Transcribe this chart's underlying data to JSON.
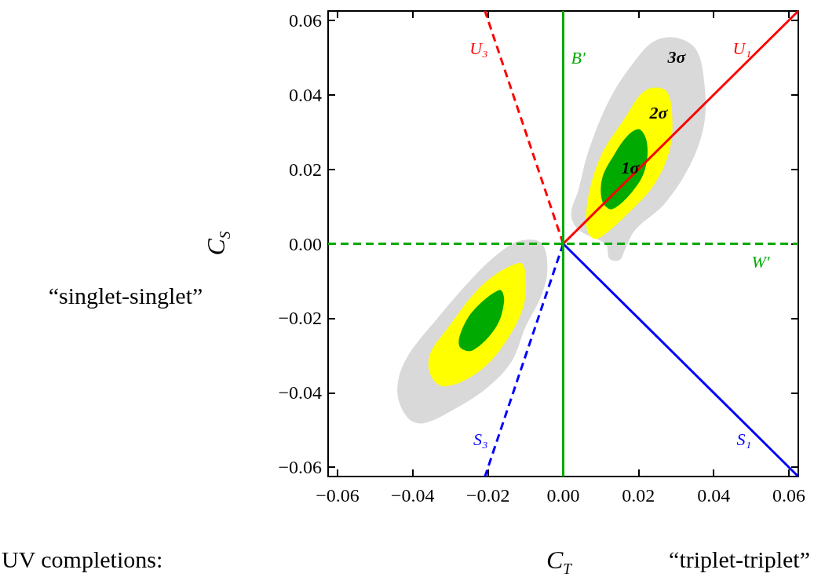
{
  "chart_data": {
    "type": "line",
    "xlabel": "C$_{T}$",
    "ylabel": "C$_{S}$",
    "xlim": [
      -0.0625,
      0.0625
    ],
    "ylim": [
      -0.0625,
      0.0625
    ],
    "xticks": [
      {
        "value": -0.06,
        "label": "−0.06"
      },
      {
        "value": -0.04,
        "label": "−0.04"
      },
      {
        "value": -0.02,
        "label": "−0.02"
      },
      {
        "value": 0,
        "label": "0.00"
      },
      {
        "value": 0.02,
        "label": "0.02"
      },
      {
        "value": 0.04,
        "label": "0.04"
      },
      {
        "value": 0.06,
        "label": "0.06"
      }
    ],
    "yticks": [
      {
        "value": -0.06,
        "label": "−0.06"
      },
      {
        "value": -0.04,
        "label": "−0.04"
      },
      {
        "value": -0.02,
        "label": "−0.02"
      },
      {
        "value": 0,
        "label": "0.00"
      },
      {
        "value": 0.02,
        "label": "0.02"
      },
      {
        "value": 0.04,
        "label": "0.04"
      },
      {
        "value": 0.06,
        "label": "0.06"
      }
    ],
    "grid": false,
    "legend": false,
    "series": [
      {
        "type": "area",
        "color": "#d9d9d9",
        "x": [
          0.0297,
          0.0353,
          0.0376,
          0.0374,
          0.0338,
          0.0269,
          0.0192,
          0.0165,
          0.015,
          0.0123,
          0.0113,
          0.004,
          0.0021,
          0.004,
          0.0067,
          0.0123,
          0.0192,
          0.024
        ],
        "values": [
          0.0554,
          0.0522,
          0.0423,
          0.0318,
          0.0213,
          0.0107,
          0.0038,
          -0.0013,
          -0.0044,
          -0.004,
          -0.0002,
          0.0038,
          0.008,
          0.0143,
          0.0248,
          0.0387,
          0.0493,
          0.0543
        ]
      },
      {
        "type": "area",
        "color": "#ffff00",
        "x": [
          0.024,
          0.0276,
          0.029,
          0.0282,
          0.024,
          0.0171,
          0.0115,
          0.0084,
          0.0063,
          0.0067,
          0.0102,
          0.0165,
          0.0207
        ],
        "values": [
          0.0419,
          0.0408,
          0.0339,
          0.0248,
          0.0156,
          0.008,
          0.0029,
          0.0013,
          0.0038,
          0.0128,
          0.024,
          0.0339,
          0.0402
        ]
      },
      {
        "type": "area",
        "color": "#00aa00",
        "x": [
          0.0203,
          0.0223,
          0.0217,
          0.0186,
          0.013,
          0.0104,
          0.0104,
          0.0136,
          0.0171
        ],
        "values": [
          0.0307,
          0.0269,
          0.0198,
          0.0143,
          0.0093,
          0.0114,
          0.0177,
          0.024,
          0.029
        ]
      },
      {
        "type": "area",
        "color": "#d9d9d9",
        "x": [
          -0.0115,
          -0.0058,
          -0.0042,
          -0.0058,
          -0.01,
          -0.0136,
          -0.0198,
          -0.0282,
          -0.0372,
          -0.0414,
          -0.0441,
          -0.042,
          -0.0336,
          -0.0232,
          -0.0163
        ],
        "values": [
          0.0008,
          0.0002,
          -0.0067,
          -0.0139,
          -0.0223,
          -0.0314,
          -0.0383,
          -0.044,
          -0.0482,
          -0.0467,
          -0.0398,
          -0.0314,
          -0.0202,
          -0.0082,
          -0.0019
        ]
      },
      {
        "type": "area",
        "color": "#ffff00",
        "x": [
          -0.0115,
          -0.01,
          -0.0107,
          -0.0163,
          -0.0232,
          -0.0315,
          -0.0351,
          -0.0355,
          -0.0309,
          -0.0211
        ],
        "values": [
          -0.0051,
          -0.0082,
          -0.0173,
          -0.0278,
          -0.0349,
          -0.0383,
          -0.0356,
          -0.0299,
          -0.0229,
          -0.0107
        ]
      },
      {
        "type": "area",
        "color": "#00aa00",
        "x": [
          -0.0169,
          -0.0157,
          -0.0178,
          -0.024,
          -0.0274,
          -0.0274,
          -0.024
        ],
        "values": [
          -0.0124,
          -0.0152,
          -0.0223,
          -0.0286,
          -0.0278,
          -0.0244,
          -0.0181
        ]
      },
      {
        "name": "U₁",
        "color": "#ff0000",
        "line_style": "solid",
        "x": [
          0,
          0.0625
        ],
        "values": [
          0,
          0.0625
        ]
      },
      {
        "name": "U₃",
        "color": "#ff0000",
        "line_style": "dashed",
        "x": [
          0,
          -0.0208
        ],
        "values": [
          0,
          0.0625
        ]
      },
      {
        "name": "S₃",
        "color": "#0000ff",
        "line_style": "dashed",
        "x": [
          0,
          -0.0208
        ],
        "values": [
          0,
          -0.0625
        ]
      },
      {
        "name": "S₁",
        "color": "#0000ff",
        "line_style": "solid",
        "x": [
          0,
          0.0625
        ],
        "values": [
          0,
          -0.0625
        ]
      }
    ],
    "ref_lines": [
      {
        "axis": "x",
        "value": 0,
        "label": "B′",
        "color": "#00aa00",
        "line_style": "solid"
      },
      {
        "axis": "y",
        "value": 0,
        "label": "W′",
        "color": "#00aa00",
        "line_style": "dashed"
      }
    ],
    "annotations": [
      "3σ",
      "2σ",
      "1σ",
      "“singlet-singlet”",
      "UV completions:",
      "“triplet-triplet”"
    ]
  }
}
